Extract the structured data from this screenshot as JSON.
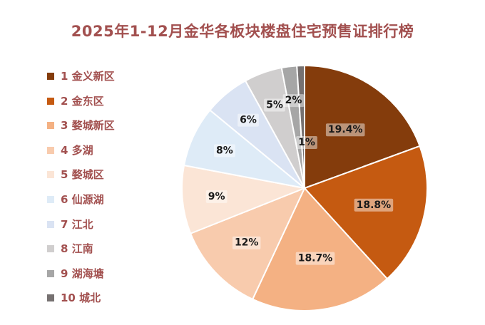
{
  "chart_data": {
    "type": "pie",
    "title": "2025年1-12月金华各板块楼盘住宅预售证排行榜",
    "legend_position": "left",
    "slices": [
      {
        "name": "1 金义新区",
        "value": 19.4,
        "label": "19.4%",
        "color": "#843c0c"
      },
      {
        "name": "2 金东区",
        "value": 18.8,
        "label": "18.8%",
        "color": "#c55a11"
      },
      {
        "name": "3 婺城新区",
        "value": 18.7,
        "label": "18.7%",
        "color": "#f4b183"
      },
      {
        "name": "4 多湖",
        "value": 12,
        "label": "12%",
        "color": "#f8cbad"
      },
      {
        "name": "5 婺城区",
        "value": 9,
        "label": "9%",
        "color": "#fbe5d6"
      },
      {
        "name": "6 仙源湖",
        "value": 8,
        "label": "8%",
        "color": "#deebf7"
      },
      {
        "name": "7 江北",
        "value": 6,
        "label": "6%",
        "color": "#dae3f3"
      },
      {
        "name": "8 江南",
        "value": 5,
        "label": "5%",
        "color": "#d0cece"
      },
      {
        "name": "9 湖海塘",
        "value": 2,
        "label": "2%",
        "color": "#a6a6a6"
      },
      {
        "name": "10 城北",
        "value": 1,
        "label": "1%",
        "color": "#767171"
      }
    ]
  }
}
